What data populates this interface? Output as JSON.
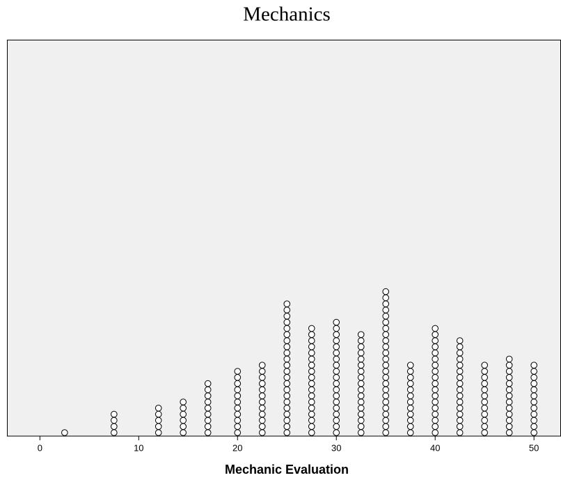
{
  "chart_data": {
    "type": "dot",
    "title": "Mechanics",
    "x_label": "Mechanic Evaluation",
    "x": [
      2.5,
      7.5,
      12,
      14.5,
      17,
      20,
      22.5,
      25,
      27.5,
      30,
      32.5,
      35,
      37.5,
      40,
      42.5,
      45,
      47.5,
      50
    ],
    "values": [
      1,
      4,
      5,
      6,
      9,
      11,
      12,
      22,
      18,
      19,
      17,
      24,
      12,
      18,
      16,
      12,
      13,
      12
    ],
    "xlim": [
      -3.3,
      52.7
    ],
    "xticks": [
      0,
      10,
      20,
      30,
      40,
      50
    ],
    "background": "#f0f0f0",
    "color": "#ffffff"
  }
}
